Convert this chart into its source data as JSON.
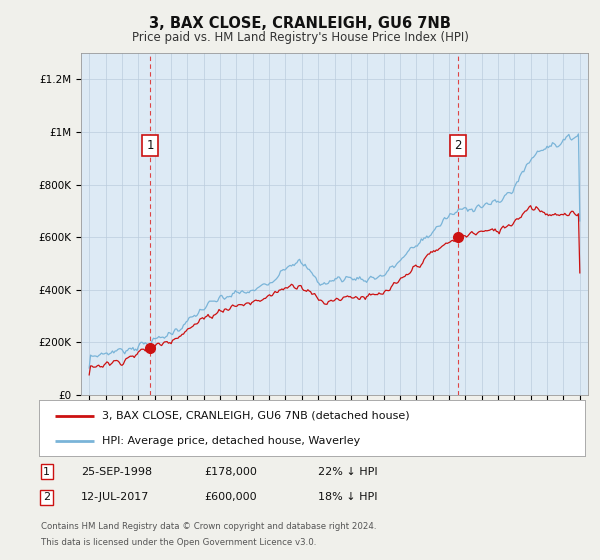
{
  "title": "3, BAX CLOSE, CRANLEIGH, GU6 7NB",
  "subtitle": "Price paid vs. HM Land Registry's House Price Index (HPI)",
  "ylim": [
    0,
    1300000
  ],
  "yticks": [
    0,
    200000,
    400000,
    600000,
    800000,
    1000000,
    1200000
  ],
  "ytick_labels": [
    "£0",
    "£200K",
    "£400K",
    "£600K",
    "£800K",
    "£1M",
    "£1.2M"
  ],
  "sale1_date_x": 1998.73,
  "sale1_price": 178000,
  "sale2_date_x": 2017.53,
  "sale2_price": 600000,
  "hpi_color": "#7ab4d8",
  "price_color": "#cc1111",
  "vline_color": "#dd4444",
  "ann_box_edge": "#cc1111",
  "ann_box_face": "#ffffff",
  "ann_text_color": "#111111",
  "plot_bg_color": "#ddeaf5",
  "fig_bg_color": "#f0f0eb",
  "legend_bg_color": "#ffffff",
  "grid_color": "#bbccdd",
  "legend_entry1": "3, BAX CLOSE, CRANLEIGH, GU6 7NB (detached house)",
  "legend_entry2": "HPI: Average price, detached house, Waverley",
  "footer1": "Contains HM Land Registry data © Crown copyright and database right 2024.",
  "footer2": "This data is licensed under the Open Government Licence v3.0.",
  "table_row1": [
    "1",
    "25-SEP-1998",
    "£178,000",
    "22% ↓ HPI"
  ],
  "table_row2": [
    "2",
    "12-JUL-2017",
    "£600,000",
    "18% ↓ HPI"
  ],
  "xmin": 1994.5,
  "xmax": 2025.5
}
